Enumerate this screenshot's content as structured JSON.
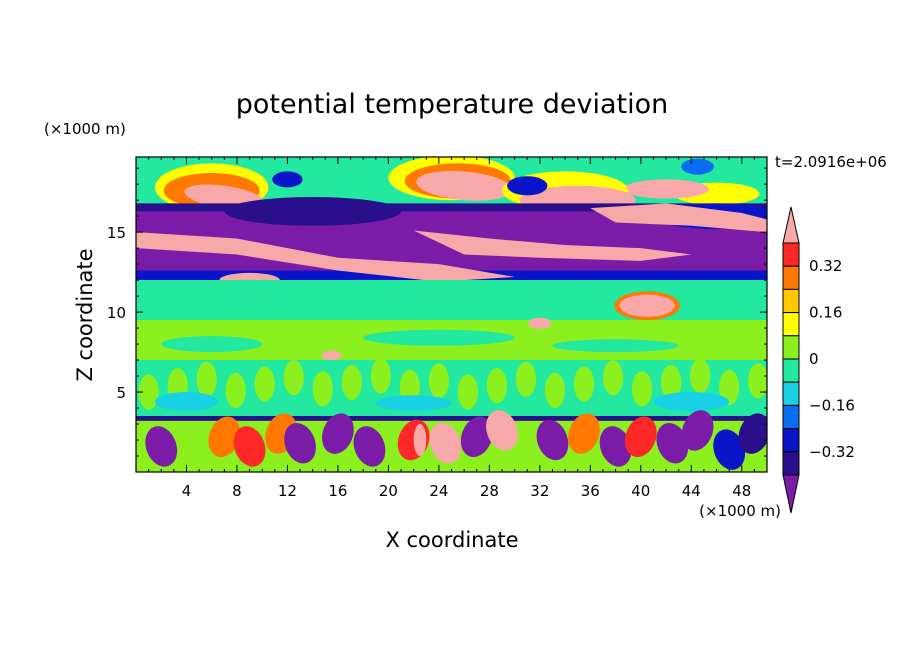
{
  "chart_data": {
    "type": "heatmap",
    "title": "potential temperature deviation",
    "time_label": "t=2.0916e+06",
    "xlabel": "X coordinate",
    "ylabel": "Z coordinate",
    "x_unit": "(×1000 m)",
    "y_unit": "(×1000 m)",
    "xlim": [
      0,
      50
    ],
    "ylim": [
      0,
      19.7
    ],
    "x_ticks": [
      4,
      8,
      12,
      16,
      20,
      24,
      28,
      32,
      36,
      40,
      44,
      48
    ],
    "y_ticks": [
      5,
      10,
      15
    ],
    "colorbar": {
      "levels": [
        -0.4,
        -0.32,
        -0.24,
        -0.16,
        -0.08,
        0,
        0.08,
        0.16,
        0.24,
        0.32,
        0.4
      ],
      "colors": [
        "#7a1ca8",
        "#2a0f8c",
        "#0a14c8",
        "#0a6cf0",
        "#18d2e4",
        "#22e8a0",
        "#8cf01e",
        "#ffff00",
        "#ffc800",
        "#ff7800",
        "#ff2828",
        "#f8a8a8"
      ],
      "tick_labels": [
        "0.32",
        "0.16",
        "0",
        "-0.16",
        "-0.32"
      ]
    },
    "field": {
      "description_bands": [
        {
          "z": [
            0,
            3.4
          ],
          "mean": 0.2,
          "variability": "high"
        },
        {
          "z": [
            3.4,
            7
          ],
          "mean": 0.03,
          "variability": "moderate"
        },
        {
          "z": [
            7,
            12
          ],
          "mean": 0.02,
          "variability": "low"
        },
        {
          "z": [
            12,
            16.5
          ],
          "mean": -0.3,
          "variability": "high"
        },
        {
          "z": [
            16.5,
            19.7
          ],
          "mean": 0.05,
          "variability": "moderate"
        }
      ]
    }
  }
}
